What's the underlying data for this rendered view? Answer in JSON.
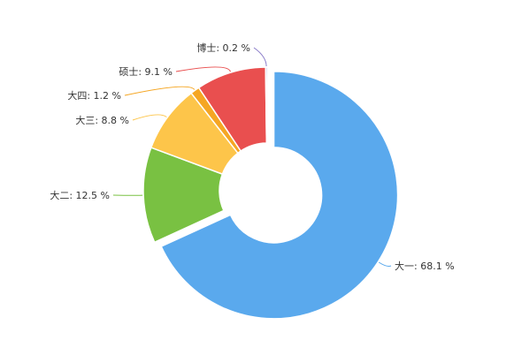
{
  "chart_data": {
    "type": "pie",
    "donut": true,
    "start_angle_deg": 0,
    "direction": "clockwise",
    "label_format": "{name}: {value} %",
    "slices": [
      {
        "name": "大一",
        "value": 68.1,
        "color": "#5aa9ed",
        "offset": true
      },
      {
        "name": "大二",
        "value": 12.5,
        "color": "#79c142",
        "offset": false
      },
      {
        "name": "大三",
        "value": 8.8,
        "color": "#fdc54a",
        "offset": false
      },
      {
        "name": "大四",
        "value": 1.2,
        "color": "#f5a623",
        "offset": false
      },
      {
        "name": "硕士",
        "value": 9.1,
        "color": "#e94f4f",
        "offset": false
      },
      {
        "name": "博士",
        "value": 0.2,
        "color": "#8a7cc9",
        "offset": false
      }
    ]
  }
}
